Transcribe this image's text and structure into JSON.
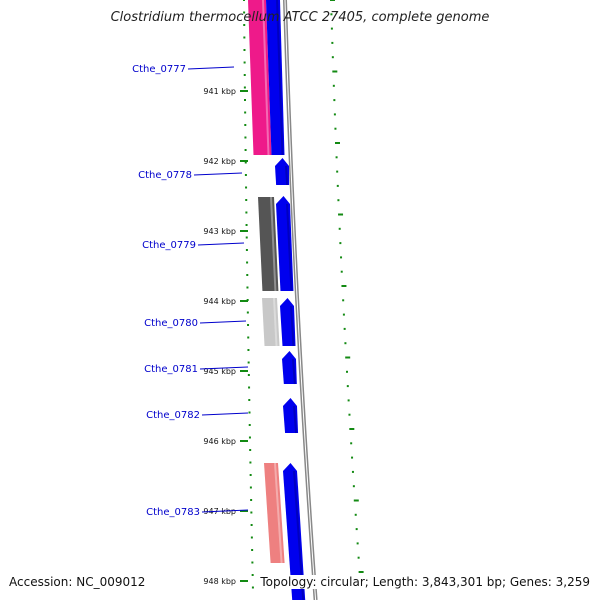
{
  "title": "Clostridium thermocellum ATCC 27405, complete genome",
  "footer": {
    "accession": "Accession: NC_009012",
    "topology": "Topology: circular; Length: 3,843,301 bp; Genes: 3,259"
  },
  "colors": {
    "forward_cds": "#0000ee",
    "backbone": "#888888",
    "label": "#0000cc",
    "ticks": "#138a13",
    "magenta": "#ee1a8a",
    "dark_gray": "#555555",
    "light_gray": "#c8c8c8",
    "salmon": "#ee8080"
  },
  "kbp_ticks": [
    {
      "kbp": 941,
      "label": "941 kbp"
    },
    {
      "kbp": 942,
      "label": "942 kbp"
    },
    {
      "kbp": 943,
      "label": "943 kbp"
    },
    {
      "kbp": 944,
      "label": "944 kbp"
    },
    {
      "kbp": 945,
      "label": "945 kbp"
    },
    {
      "kbp": 946,
      "label": "946 kbp"
    },
    {
      "kbp": 947,
      "label": "947 kbp"
    },
    {
      "kbp": 948,
      "label": "948 kbp"
    }
  ],
  "genes": [
    {
      "name": "Cthe_0777"
    },
    {
      "name": "Cthe_0778"
    },
    {
      "name": "Cthe_0779"
    },
    {
      "name": "Cthe_0780"
    },
    {
      "name": "Cthe_0781"
    },
    {
      "name": "Cthe_0782"
    },
    {
      "name": "Cthe_0783"
    }
  ]
}
